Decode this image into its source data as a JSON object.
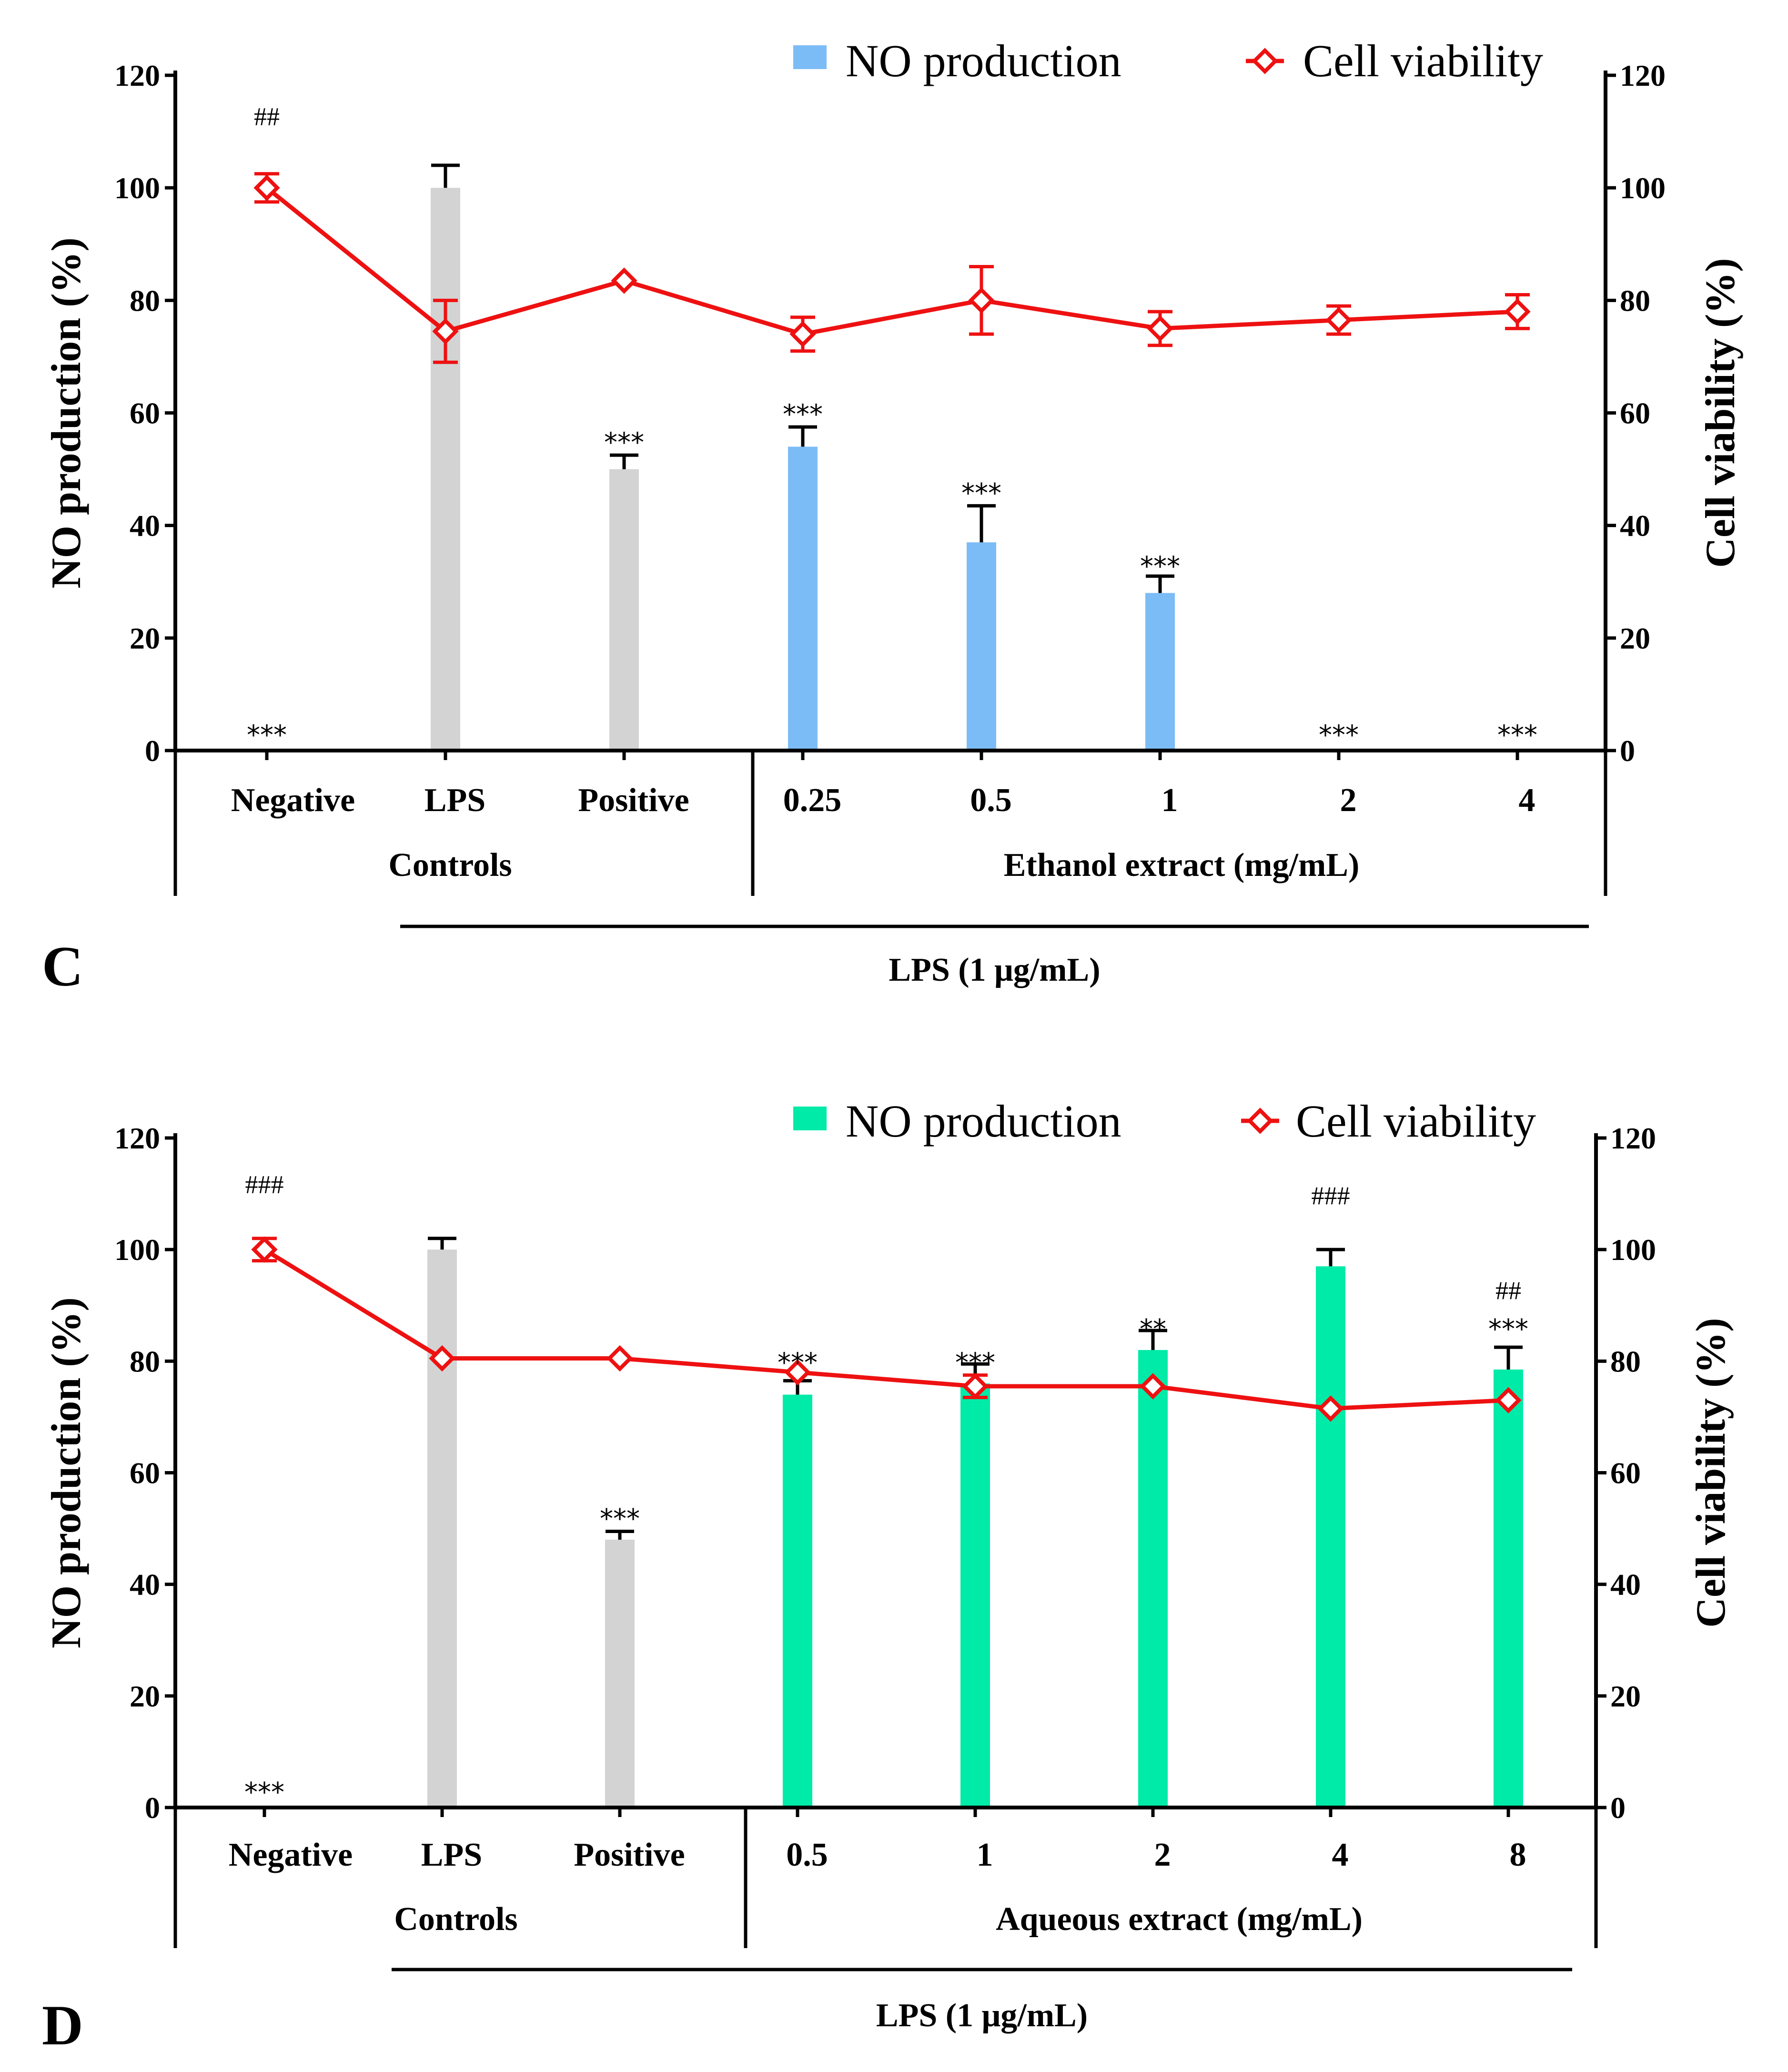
{
  "chart_data": [
    {
      "type": "bar",
      "panel_label": "C",
      "categories": [
        "Negative",
        "LPS",
        "Positive",
        "0.25",
        "0.5",
        "1",
        "2",
        "4"
      ],
      "groups": [
        {
          "label": "Controls",
          "categories": [
            "Negative",
            "LPS",
            "Positive"
          ]
        },
        {
          "label": "Ethanol extract (mg/mL)",
          "categories": [
            "0.25",
            "0.5",
            "1",
            "2",
            "4"
          ]
        }
      ],
      "treatment_label": "LPS (1 μg/mL)",
      "ylabel": "NO production (%)",
      "y2label": "Cell viability (%)",
      "ylim": [
        0,
        120
      ],
      "y2lim": [
        0,
        120
      ],
      "yticks": [
        "0",
        "20",
        "40",
        "60",
        "80",
        "100",
        "120"
      ],
      "y2ticks": [
        "0",
        "20",
        "40",
        "60",
        "80",
        "100",
        "120"
      ],
      "legend": {
        "position": "top",
        "bar_label": "NO production",
        "line_label": "Cell viability"
      },
      "series": [
        {
          "name": "NO production",
          "kind": "bar",
          "values": [
            0,
            100,
            50,
            54,
            37,
            28,
            0,
            0
          ],
          "errors": [
            0,
            4,
            2.5,
            3.5,
            6.5,
            3,
            0,
            0
          ],
          "colors": [
            "#d3d3d3",
            "#d3d3d3",
            "#d3d3d3",
            "#7cbcf6",
            "#7cbcf6",
            "#7cbcf6",
            "#7cbcf6",
            "#7cbcf6"
          ]
        },
        {
          "name": "Cell viability",
          "kind": "line",
          "color": "#ee1111",
          "values": [
            100,
            74.5,
            83.5,
            74,
            80,
            75,
            76.5,
            78
          ],
          "errors": [
            2.5,
            5.5,
            1,
            3,
            6,
            3,
            2.5,
            3
          ]
        }
      ],
      "annotations": [
        {
          "index": 0,
          "text": "##",
          "kind": "hash",
          "y": 113
        },
        {
          "index": 0,
          "text": "***",
          "kind": "star",
          "y": 3
        },
        {
          "index": 2,
          "text": "***",
          "kind": "star",
          "y": 55
        },
        {
          "index": 3,
          "text": "***",
          "kind": "star",
          "y": 60
        },
        {
          "index": 4,
          "text": "***",
          "kind": "star",
          "y": 46
        },
        {
          "index": 5,
          "text": "***",
          "kind": "star",
          "y": 33
        },
        {
          "index": 6,
          "text": "***",
          "kind": "star",
          "y": 3
        },
        {
          "index": 7,
          "text": "***",
          "kind": "star",
          "y": 3
        }
      ]
    },
    {
      "type": "bar",
      "panel_label": "D",
      "categories": [
        "Negative",
        "LPS",
        "Positive",
        "0.5",
        "1",
        "2",
        "4",
        "8"
      ],
      "groups": [
        {
          "label": "Controls",
          "categories": [
            "Negative",
            "LPS",
            "Positive"
          ]
        },
        {
          "label": "Aqueous extract (mg/mL)",
          "categories": [
            "0.5",
            "1",
            "2",
            "4",
            "8"
          ]
        }
      ],
      "treatment_label": "LPS (1 μg/mL)",
      "ylabel": "NO production (%)",
      "y2label": "Cell viability (%)",
      "ylim": [
        0,
        120
      ],
      "y2lim": [
        0,
        120
      ],
      "yticks": [
        "0",
        "20",
        "40",
        "60",
        "80",
        "100",
        "120"
      ],
      "y2ticks": [
        "0",
        "20",
        "40",
        "60",
        "80",
        "100",
        "120"
      ],
      "legend": {
        "position": "top",
        "bar_label": "NO production",
        "line_label": "Cell viability"
      },
      "series": [
        {
          "name": "NO production",
          "kind": "bar",
          "values": [
            0,
            100,
            48,
            74,
            76,
            82,
            97,
            78.5
          ],
          "errors": [
            0,
            2,
            1.5,
            2.5,
            3.5,
            3.5,
            3,
            4
          ],
          "colors": [
            "#d3d3d3",
            "#d3d3d3",
            "#d3d3d3",
            "#00eaa8",
            "#00eaa8",
            "#00eaa8",
            "#00eaa8",
            "#00eaa8"
          ]
        },
        {
          "name": "Cell viability",
          "kind": "line",
          "color": "#ee1111",
          "values": [
            100,
            80.5,
            80.5,
            78,
            75.5,
            75.5,
            71.5,
            73
          ],
          "errors": [
            2,
            0.5,
            0.5,
            0.5,
            2,
            0.5,
            0.5,
            0.5
          ]
        }
      ],
      "annotations": [
        {
          "index": 0,
          "text": "###",
          "kind": "hash",
          "y": 112
        },
        {
          "index": 0,
          "text": "***",
          "kind": "star",
          "y": 3
        },
        {
          "index": 2,
          "text": "***",
          "kind": "star",
          "y": 52
        },
        {
          "index": 3,
          "text": "***",
          "kind": "star",
          "y": 80
        },
        {
          "index": 4,
          "text": "***",
          "kind": "star",
          "y": 80
        },
        {
          "index": 5,
          "text": "**",
          "kind": "star",
          "y": 86
        },
        {
          "index": 6,
          "text": "###",
          "kind": "hash",
          "y": 110
        },
        {
          "index": 7,
          "text": "##",
          "kind": "hash",
          "y": 93
        },
        {
          "index": 7,
          "text": "***",
          "kind": "star",
          "y": 86
        }
      ]
    }
  ]
}
